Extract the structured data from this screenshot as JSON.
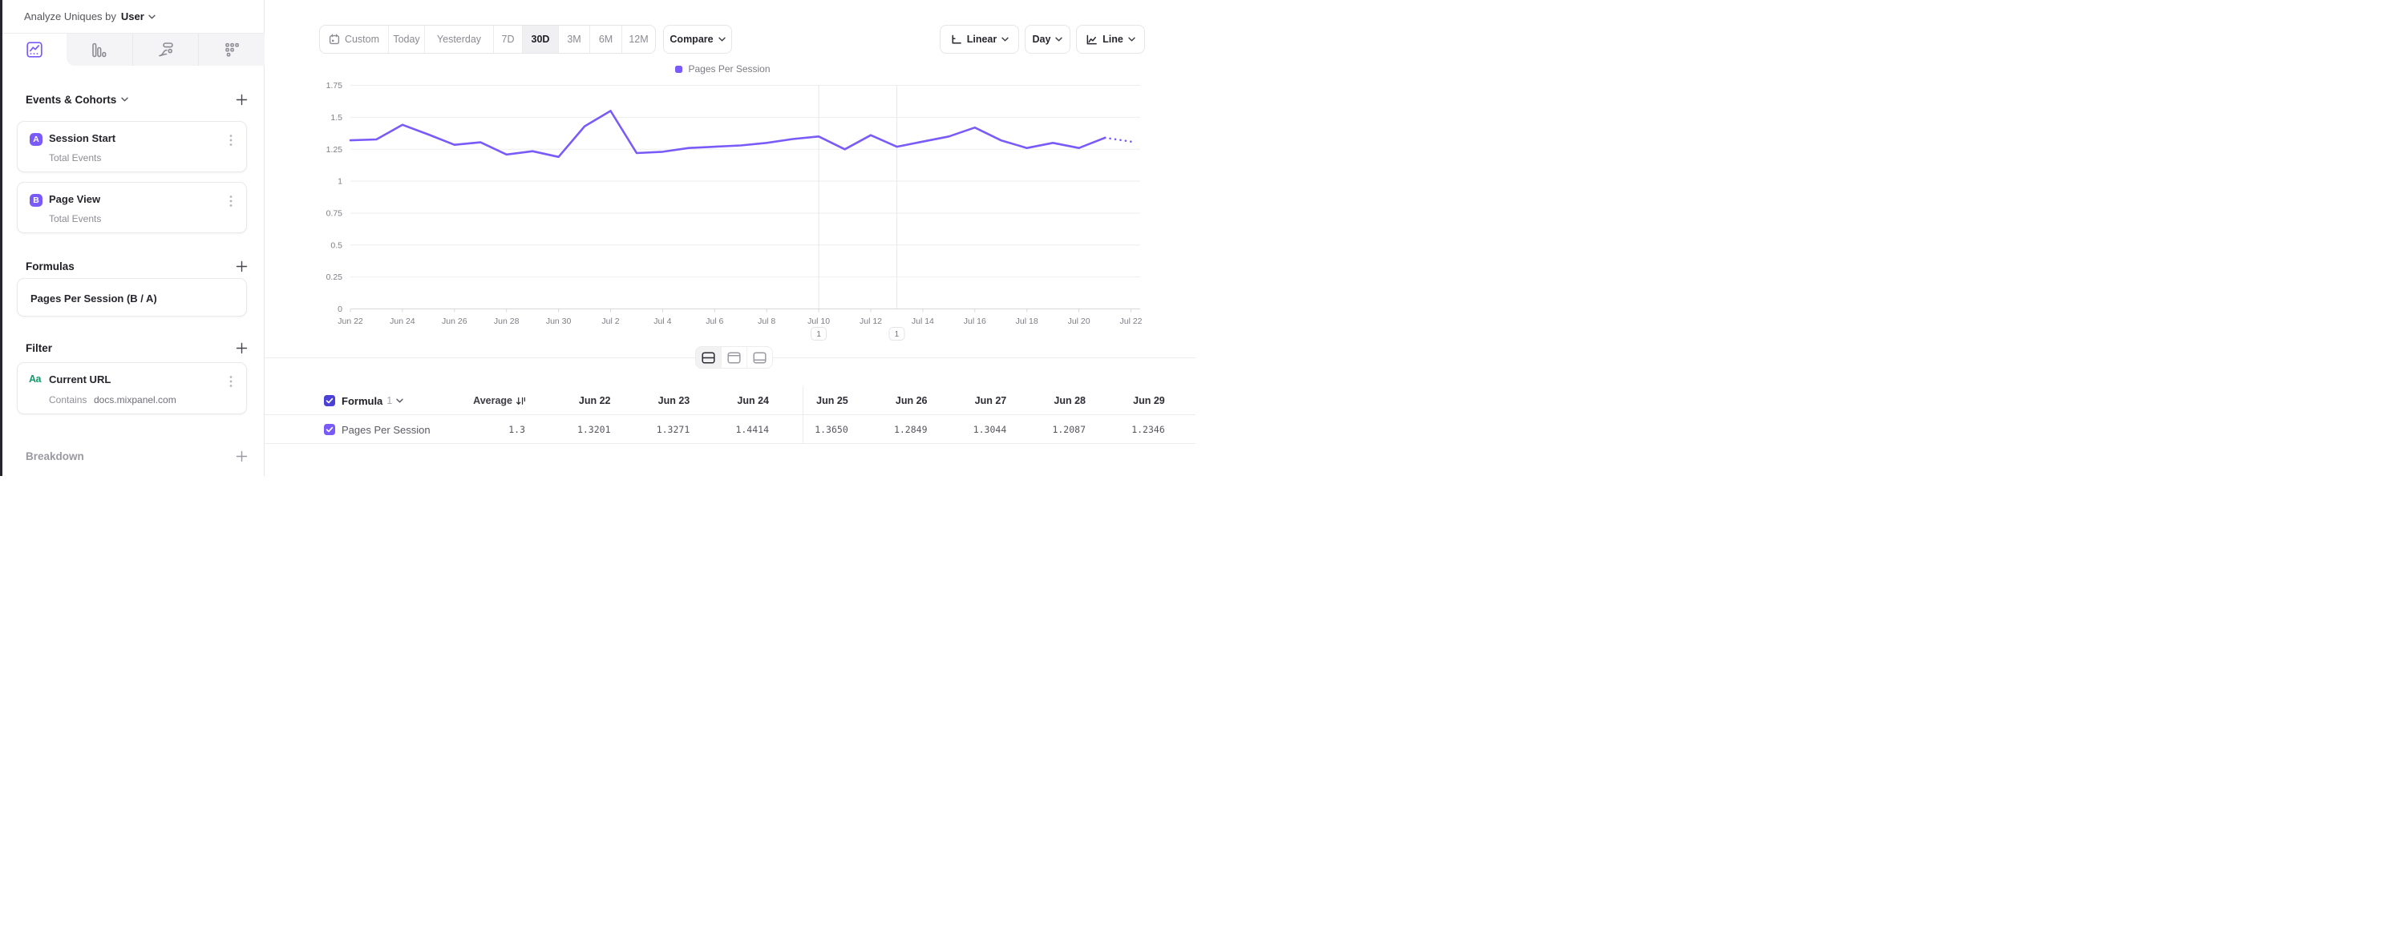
{
  "theme": {
    "accent": "#7A5AF8",
    "accent_dark": "#4B41D7",
    "green": "#0D9C6D"
  },
  "sidebar": {
    "analyze": {
      "label": "Analyze Uniques by",
      "value": "User"
    },
    "chart_tabs": [
      {
        "name": "insights",
        "selected": true
      },
      {
        "name": "bar",
        "selected": false
      },
      {
        "name": "flows",
        "selected": false
      },
      {
        "name": "retention",
        "selected": false
      }
    ],
    "events": {
      "title": "Events & Cohorts",
      "items": [
        {
          "badge": "A",
          "title": "Session Start",
          "subtitle": "Total Events"
        },
        {
          "badge": "B",
          "title": "Page View",
          "subtitle": "Total Events"
        }
      ]
    },
    "formulas": {
      "title": "Formulas",
      "items": [
        {
          "title": "Pages Per Session (B / A)"
        }
      ]
    },
    "filter": {
      "title": "Filter",
      "items": [
        {
          "type_icon": "Aa",
          "title": "Current URL",
          "operator": "Contains",
          "value": "docs.mixpanel.com"
        }
      ]
    },
    "breakdown": {
      "title": "Breakdown"
    }
  },
  "toolbar": {
    "ranges": [
      "Custom",
      "Today",
      "Yesterday",
      "7D",
      "30D",
      "3M",
      "6M",
      "12M"
    ],
    "range_widths": [
      85,
      45,
      86,
      36,
      45,
      39,
      40,
      42
    ],
    "selected_range": "30D",
    "compare_label": "Compare",
    "scale_label": "Linear",
    "interval_label": "Day",
    "chart_type_label": "Line"
  },
  "chart_data": {
    "type": "line",
    "title": "",
    "xlabel": "",
    "ylabel": "",
    "ylim": [
      0,
      1.75
    ],
    "yticks": [
      0,
      0.25,
      0.5,
      0.75,
      1,
      1.25,
      1.5,
      1.75
    ],
    "grid": true,
    "legend_position": "top",
    "x": [
      "Jun 22",
      "Jun 23",
      "Jun 24",
      "Jun 25",
      "Jun 26",
      "Jun 27",
      "Jun 28",
      "Jun 29",
      "Jun 30",
      "Jul 1",
      "Jul 2",
      "Jul 3",
      "Jul 4",
      "Jul 5",
      "Jul 6",
      "Jul 7",
      "Jul 8",
      "Jul 9",
      "Jul 10",
      "Jul 11",
      "Jul 12",
      "Jul 13",
      "Jul 14",
      "Jul 15",
      "Jul 16",
      "Jul 17",
      "Jul 18",
      "Jul 19",
      "Jul 20",
      "Jul 21",
      "Jul 22"
    ],
    "x_labeled_every": 2,
    "series": [
      {
        "name": "Pages Per Session",
        "color": "#7A5AF8",
        "values": [
          1.3201,
          1.3271,
          1.4414,
          1.365,
          1.2849,
          1.3044,
          1.2087,
          1.2346,
          1.19,
          1.43,
          1.55,
          1.22,
          1.23,
          1.26,
          1.27,
          1.28,
          1.3,
          1.33,
          1.35,
          1.25,
          1.36,
          1.27,
          1.31,
          1.35,
          1.42,
          1.32,
          1.26,
          1.3,
          1.26,
          1.34,
          1.31
        ]
      }
    ],
    "incomplete_tail_dotted": true,
    "annotations": [
      {
        "x": "Jul 10",
        "label": "1"
      },
      {
        "x": "Jul 13",
        "label": "1"
      }
    ]
  },
  "table": {
    "header": {
      "group_label": "Formula",
      "group_index": "1",
      "metric": "Average"
    },
    "columns": [
      "Jun 22",
      "Jun 23",
      "Jun 24",
      "Jun 25",
      "Jun 26",
      "Jun 27",
      "Jun 28",
      "Jun 29"
    ],
    "rows": [
      {
        "name": "Pages Per Session",
        "average": "1.3",
        "values": [
          "1.3201",
          "1.3271",
          "1.4414",
          "1.3650",
          "1.2849",
          "1.3044",
          "1.2087",
          "1.2346"
        ]
      }
    ]
  }
}
